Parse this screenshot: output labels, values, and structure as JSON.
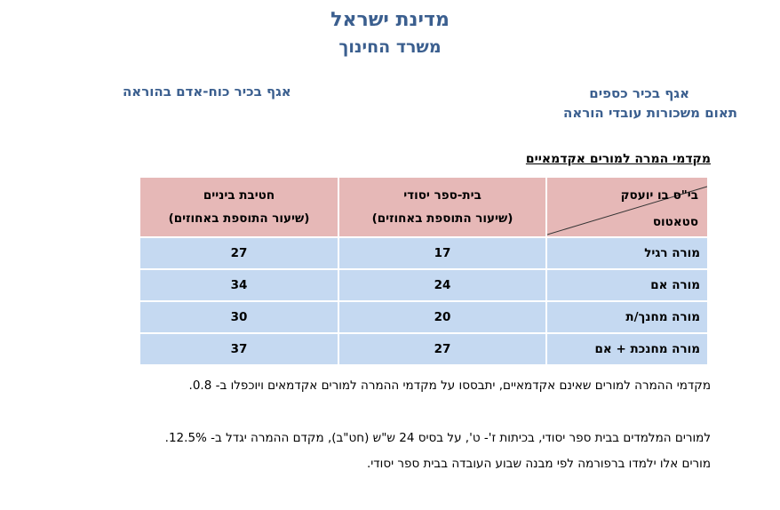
{
  "header": {
    "title": "מדינת ישראל",
    "subtitle": "משרד החינוך",
    "dept_right_line1": "אגף בכיר כספים",
    "dept_right_line2": "תאום משכורות עובדי הוראה",
    "dept_left": "אגף בכיר כוח-אדם בהוראה"
  },
  "section_heading": "מקדמי המרה למורים אקדמאיים",
  "table": {
    "corner_top": "בי\"ס בו יועסק",
    "corner_bottom": "סטאטוס",
    "col_elementary": "בית-ספר יסודי",
    "col_middle": "חטיבת ביניים",
    "col_sub": "(שיעור התוספת באחוזים)",
    "rows": [
      {
        "label": "מורה רגיל",
        "elementary": "17",
        "middle": "27"
      },
      {
        "label": "מורה אם",
        "elementary": "24",
        "middle": "34"
      },
      {
        "label": "מורה מחנך/ת",
        "elementary": "20",
        "middle": "30"
      },
      {
        "label": "מורה מחנכת + אם",
        "elementary": "27",
        "middle": "37"
      }
    ]
  },
  "notes": {
    "note1": "מקדמי ההמרה למורים שאינם אקדמאיים, יתבססו על מקדמי ההמרה למורים אקדמאים ויוכפלו ב- 0.8.",
    "note2": "למורים המלמדים בבית ספר יסודי, בכיתות ז'- ט', על בסיס 24 ש\"ש (חט\"ב), מקדם ההמרה יגדל ב- 12.5%.",
    "note3": "מורים אלו ילמדו ברפורמה לפי מבנה שבוע העובדה בבית ספר יסודי."
  },
  "colors": {
    "title_blue": "#3b5f8f",
    "header_pink": "#e6b8b7",
    "row_blue": "#c5d9f1"
  }
}
